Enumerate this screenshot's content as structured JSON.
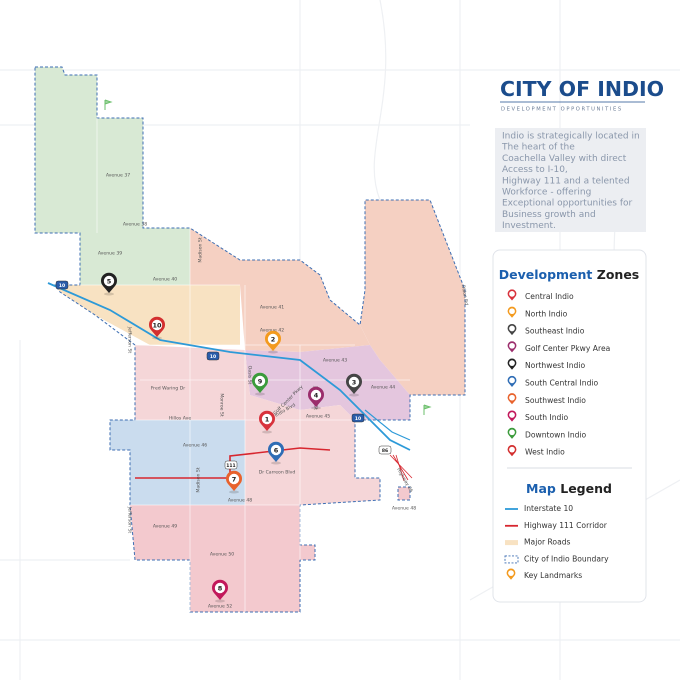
{
  "header": {
    "title": "CITY OF INDIO",
    "subtitle": "DEVELOPMENT OPPORTUNITIES"
  },
  "description": [
    "Indio is strategically located in",
    "The heart of the",
    "Coachella Valley with direct",
    "Access to I-10,",
    "Highway 111 and a telented",
    "Workforce - offering",
    "Exceptional opportunities for",
    "Business growth and",
    "Investment."
  ],
  "zones": {
    "title_accent": "Development",
    "title_rest": "Zones",
    "items": [
      "Central Indio",
      "North Indio",
      "Southeast Indio",
      "Golf Center Pkwy Area",
      "Northwest Indio",
      "South Central Indio",
      "Southwest Indio",
      "South Indio",
      "Downtown Indio",
      "West Indio"
    ]
  },
  "legend": {
    "title_accent": "Map",
    "title_rest": "Legend",
    "items": [
      "Interstate 10",
      "Highway 111 Corridor",
      "Major Roads",
      "City of Indio Boundary",
      "Key Landmarks"
    ]
  },
  "map": {
    "road_labels": [
      "Avenue 37",
      "Avenue 38",
      "Avenue 39",
      "Avenue 40",
      "Avenue 41",
      "Avenue 42",
      "Avenue 43",
      "Avenue 44",
      "Avenue 45",
      "Avenue 46",
      "Avenue 48",
      "Avenue 49",
      "Avenue 50",
      "Avenue 52",
      "Avenue 48",
      "Fred Waring Dr",
      "Hillos Ave",
      "Dr Carreon Blvd",
      "Jefferson St",
      "Jefferson St",
      "Madison St",
      "Madison St",
      "Monroe St",
      "Oasis St",
      "Jackson St",
      "Golf Center Pkwy",
      "Indio Blvd",
      "Dillon Rd",
      "Highway 86"
    ],
    "landmarks": [
      "1",
      "2",
      "3",
      "4",
      "5",
      "6",
      "7",
      "8",
      "9",
      "10"
    ],
    "shields": [
      "10",
      "10",
      "10",
      "111",
      "86"
    ]
  }
}
